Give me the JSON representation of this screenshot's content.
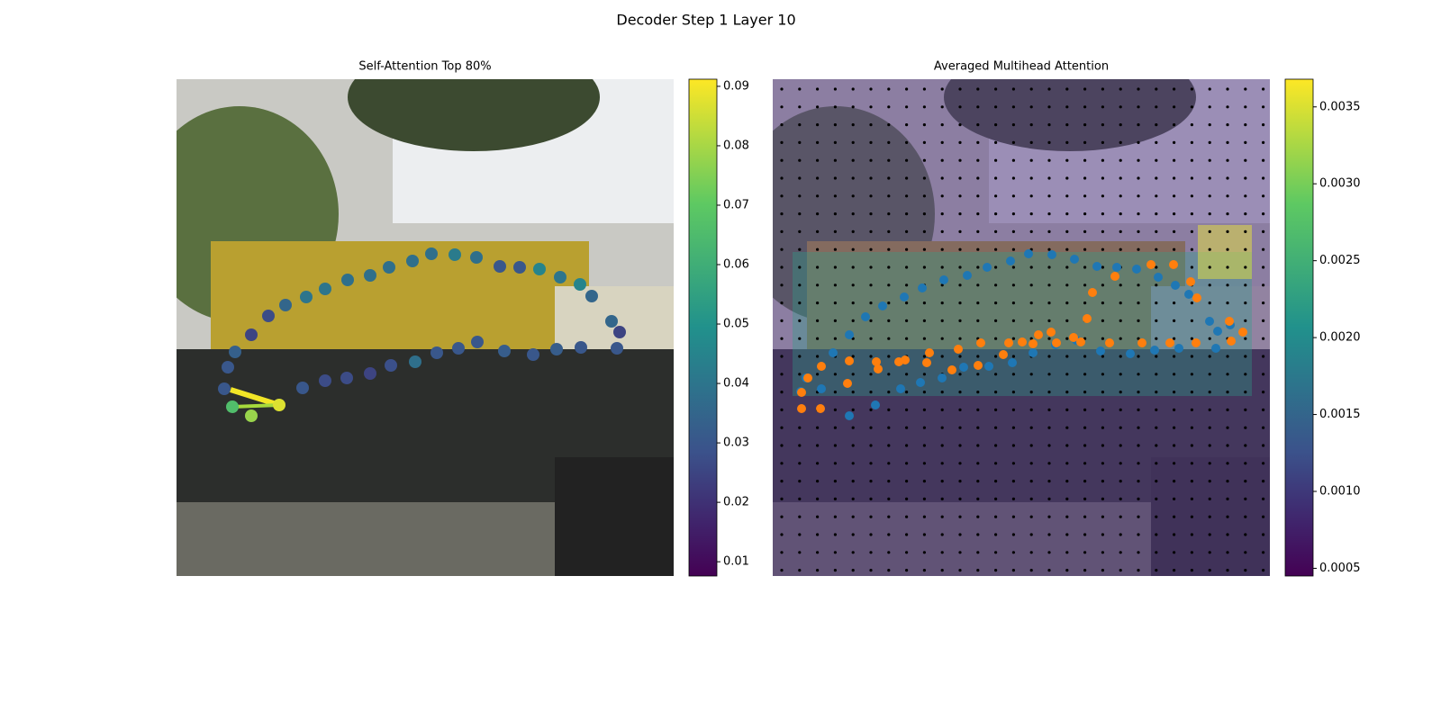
{
  "title": "Decoder Step 1 Layer 10",
  "chart_data": [
    {
      "type": "scatter",
      "title": "Self-Attention Top 80%",
      "x": [
        53,
        57,
        65,
        83,
        102,
        121,
        144,
        165,
        190,
        215,
        236,
        262,
        283,
        309,
        333,
        359,
        381,
        403,
        426,
        448,
        461,
        483,
        492,
        489,
        449,
        422,
        396,
        364,
        334,
        313,
        289,
        265,
        238,
        215,
        189,
        165,
        140,
        62,
        83,
        114
      ],
      "y": [
        344,
        320,
        303,
        284,
        263,
        251,
        242,
        233,
        223,
        218,
        209,
        202,
        194,
        195,
        198,
        208,
        209,
        211,
        220,
        228,
        241,
        269,
        281,
        299,
        298,
        300,
        306,
        302,
        292,
        299,
        304,
        314,
        318,
        327,
        332,
        335,
        343,
        364,
        374,
        362
      ],
      "values": [
        0.03,
        0.03,
        0.033,
        0.025,
        0.027,
        0.035,
        0.04,
        0.04,
        0.038,
        0.038,
        0.038,
        0.038,
        0.038,
        0.042,
        0.038,
        0.03,
        0.03,
        0.045,
        0.04,
        0.045,
        0.035,
        0.035,
        0.025,
        0.03,
        0.03,
        0.032,
        0.03,
        0.032,
        0.03,
        0.03,
        0.03,
        0.038,
        0.028,
        0.025,
        0.027,
        0.027,
        0.03,
        0.066,
        0.078,
        0.087
      ],
      "xlim": [
        0,
        552
      ],
      "ylim": [
        552,
        0
      ],
      "clim": [
        0.0076,
        0.0912
      ],
      "cticks": [
        0.01,
        0.02,
        0.03,
        0.04,
        0.05,
        0.06,
        0.07,
        0.08,
        0.09
      ]
    },
    {
      "type": "scatter",
      "title": "Averaged Multihead Attention",
      "series": [
        {
          "color": "#1f77b4",
          "x": [
            31,
            37,
            54,
            67,
            85,
            85,
            103,
            122,
            114,
            146,
            142,
            166,
            164,
            190,
            188,
            216,
            212,
            238,
            240,
            264,
            266,
            284,
            289,
            310,
            314,
            335,
            337,
            360,
            364,
            382,
            397,
            404,
            424,
            428,
            447,
            451,
            462,
            485,
            492,
            494,
            508
          ],
          "y": [
            347,
            332,
            344,
            304,
            284,
            374,
            264,
            252,
            362,
            242,
            344,
            232,
            337,
            223,
            332,
            218,
            320,
            209,
            319,
            202,
            315,
            194,
            304,
            195,
            295,
            200,
            290,
            208,
            302,
            209,
            305,
            211,
            301,
            220,
            229,
            299,
            239,
            269,
            299,
            280,
            273
          ]
        },
        {
          "color": "#ff7f0e",
          "x": [
            32,
            53,
            32,
            39,
            54,
            83,
            85,
            115,
            117,
            140,
            147,
            171,
            174,
            199,
            206,
            228,
            231,
            256,
            262,
            277,
            289,
            295,
            309,
            315,
            334,
            342,
            349,
            355,
            374,
            380,
            410,
            420,
            441,
            445,
            464,
            470,
            471,
            507,
            509,
            522
          ],
          "y": [
            366,
            366,
            348,
            332,
            319,
            338,
            313,
            314,
            322,
            314,
            312,
            315,
            304,
            323,
            300,
            318,
            293,
            306,
            293,
            292,
            294,
            284,
            281,
            293,
            287,
            292,
            266,
            237,
            293,
            219,
            293,
            206,
            293,
            206,
            225,
            293,
            243,
            269,
            291,
            281
          ]
        }
      ],
      "xlim": [
        0,
        552
      ],
      "ylim": [
        552,
        0
      ],
      "clim": [
        0.00045,
        0.00368
      ],
      "cticks": [
        0.0005,
        {
          "value": 0.001,
          "label": "0.0010"
        },
        0.0015,
        {
          "value": 0.002,
          "label": "0.0020"
        },
        0.0025,
        {
          "value": 0.003,
          "label": "0.0030"
        },
        0.0035
      ]
    }
  ]
}
